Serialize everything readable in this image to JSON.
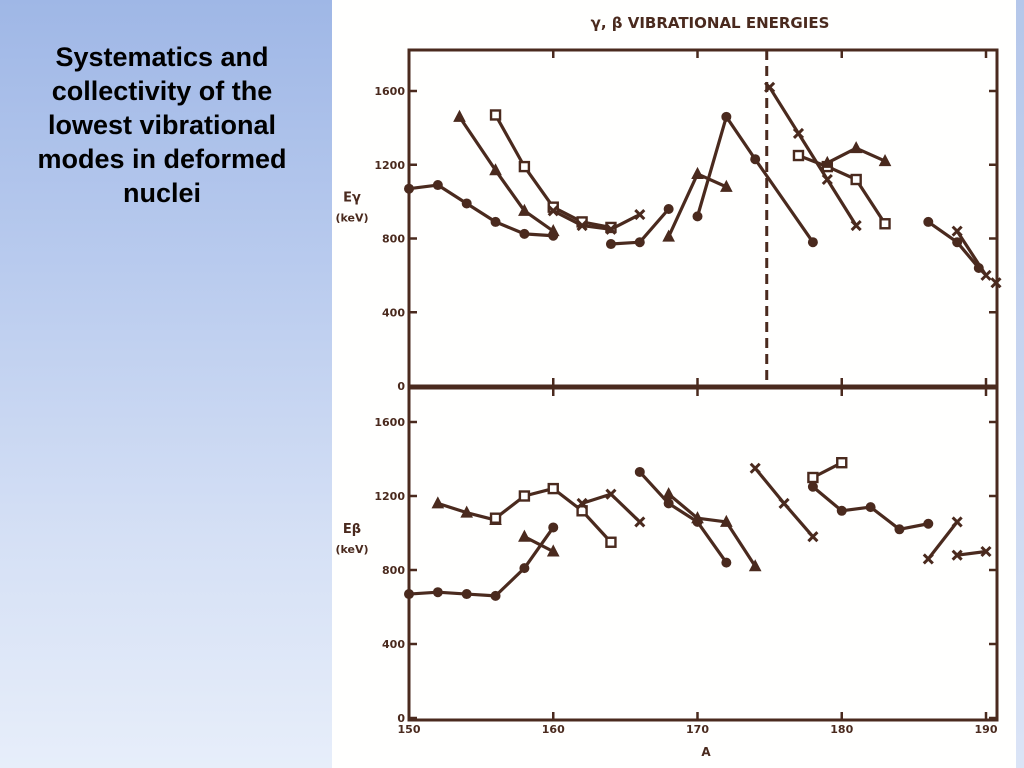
{
  "slide": {
    "title": "Systematics and collectivity of the lowest vibrational modes in deformed nuclei"
  },
  "colors": {
    "panel_gradient_top": "#9fb7e6",
    "panel_gradient_bottom": "#e7eefa",
    "ink": "#4a2a1e"
  },
  "chart_data": {
    "type": "line",
    "title": "γ, β VIBRATIONAL ENERGIES",
    "xlabel": "A",
    "x_ticks": [
      "150",
      "160",
      "170",
      "180",
      "190"
    ],
    "xlim": [
      150,
      190
    ],
    "panels": [
      {
        "id": "gamma",
        "ylabel_symbol": "Eγ",
        "ylabel_unit": "(keV)",
        "ylim": [
          0,
          1600
        ],
        "y_ticks": [
          "0",
          "400",
          "800",
          "1200",
          "1600"
        ],
        "divider_x": 174.8,
        "series": [
          {
            "marker": "circle",
            "points": [
              [
                150,
                1070
              ],
              [
                152,
                1090
              ],
              [
                154,
                990
              ],
              [
                156,
                890
              ],
              [
                158,
                825
              ],
              [
                160,
                815
              ]
            ]
          },
          {
            "marker": "triangle",
            "points": [
              [
                153.5,
                1460
              ],
              [
                156,
                1170
              ],
              [
                158,
                950
              ],
              [
                160,
                840
              ]
            ]
          },
          {
            "marker": "square",
            "points": [
              [
                156,
                1470
              ],
              [
                158,
                1190
              ],
              [
                160,
                970
              ],
              [
                162,
                890
              ],
              [
                164,
                860
              ]
            ]
          },
          {
            "marker": "cross",
            "points": [
              [
                160,
                950
              ],
              [
                162,
                870
              ],
              [
                164,
                850
              ],
              [
                166,
                930
              ]
            ]
          },
          {
            "marker": "circle",
            "points": [
              [
                164,
                770
              ],
              [
                166,
                780
              ],
              [
                168,
                960
              ]
            ]
          },
          {
            "marker": "triangle",
            "points": [
              [
                168,
                810
              ],
              [
                170,
                1150
              ],
              [
                172,
                1080
              ]
            ]
          },
          {
            "marker": "circle",
            "points": [
              [
                170,
                920
              ],
              [
                172,
                1460
              ],
              [
                174,
                1230
              ],
              [
                178,
                780
              ]
            ]
          },
          {
            "marker": "cross",
            "points": [
              [
                175,
                1620
              ],
              [
                177,
                1370
              ],
              [
                179,
                1120
              ],
              [
                181,
                870
              ]
            ]
          },
          {
            "marker": "square",
            "points": [
              [
                177,
                1250
              ],
              [
                179,
                1190
              ],
              [
                181,
                1120
              ],
              [
                183,
                880
              ]
            ]
          },
          {
            "marker": "triangle",
            "points": [
              [
                179,
                1210
              ],
              [
                181,
                1290
              ],
              [
                183,
                1220
              ]
            ]
          },
          {
            "marker": "circle",
            "points": [
              [
                186,
                890
              ],
              [
                188,
                780
              ],
              [
                189.5,
                640
              ]
            ]
          },
          {
            "marker": "cross",
            "points": [
              [
                188,
                840
              ],
              [
                190,
                600
              ]
            ]
          },
          {
            "marker": "cross",
            "points": [
              [
                192,
                560
              ]
            ]
          }
        ]
      },
      {
        "id": "beta",
        "ylabel_symbol": "Eβ",
        "ylabel_unit": "(keV)",
        "ylim": [
          0,
          1600
        ],
        "y_ticks": [
          "0",
          "400",
          "800",
          "1200",
          "1600"
        ],
        "series": [
          {
            "marker": "circle",
            "points": [
              [
                150,
                670
              ],
              [
                152,
                680
              ],
              [
                154,
                670
              ],
              [
                156,
                660
              ],
              [
                158,
                810
              ],
              [
                160,
                1030
              ]
            ]
          },
          {
            "marker": "triangle",
            "points": [
              [
                152,
                1160
              ],
              [
                154,
                1110
              ],
              [
                156,
                1070
              ]
            ]
          },
          {
            "marker": "square",
            "points": [
              [
                156,
                1080
              ],
              [
                158,
                1200
              ],
              [
                160,
                1240
              ],
              [
                162,
                1120
              ],
              [
                164,
                950
              ]
            ]
          },
          {
            "marker": "triangle",
            "points": [
              [
                158,
                980
              ],
              [
                160,
                900
              ]
            ]
          },
          {
            "marker": "cross",
            "points": [
              [
                162,
                1160
              ],
              [
                164,
                1210
              ],
              [
                166,
                1060
              ]
            ]
          },
          {
            "marker": "circle",
            "points": [
              [
                166,
                1330
              ],
              [
                168,
                1160
              ],
              [
                170,
                1060
              ],
              [
                172,
                840
              ]
            ]
          },
          {
            "marker": "triangle",
            "points": [
              [
                168,
                1210
              ],
              [
                170,
                1080
              ],
              [
                172,
                1060
              ],
              [
                174,
                820
              ]
            ]
          },
          {
            "marker": "cross",
            "points": [
              [
                174,
                1350
              ],
              [
                176,
                1160
              ],
              [
                178,
                980
              ]
            ]
          },
          {
            "marker": "square",
            "points": [
              [
                178,
                1300
              ],
              [
                180,
                1380
              ]
            ]
          },
          {
            "marker": "circle",
            "points": [
              [
                178,
                1250
              ],
              [
                180,
                1120
              ],
              [
                182,
                1140
              ],
              [
                184,
                1020
              ],
              [
                186,
                1050
              ]
            ]
          },
          {
            "marker": "cross",
            "points": [
              [
                186,
                860
              ],
              [
                188,
                1060
              ]
            ]
          },
          {
            "marker": "cross",
            "points": [
              [
                188,
                880
              ],
              [
                190,
                900
              ]
            ]
          }
        ]
      }
    ]
  }
}
